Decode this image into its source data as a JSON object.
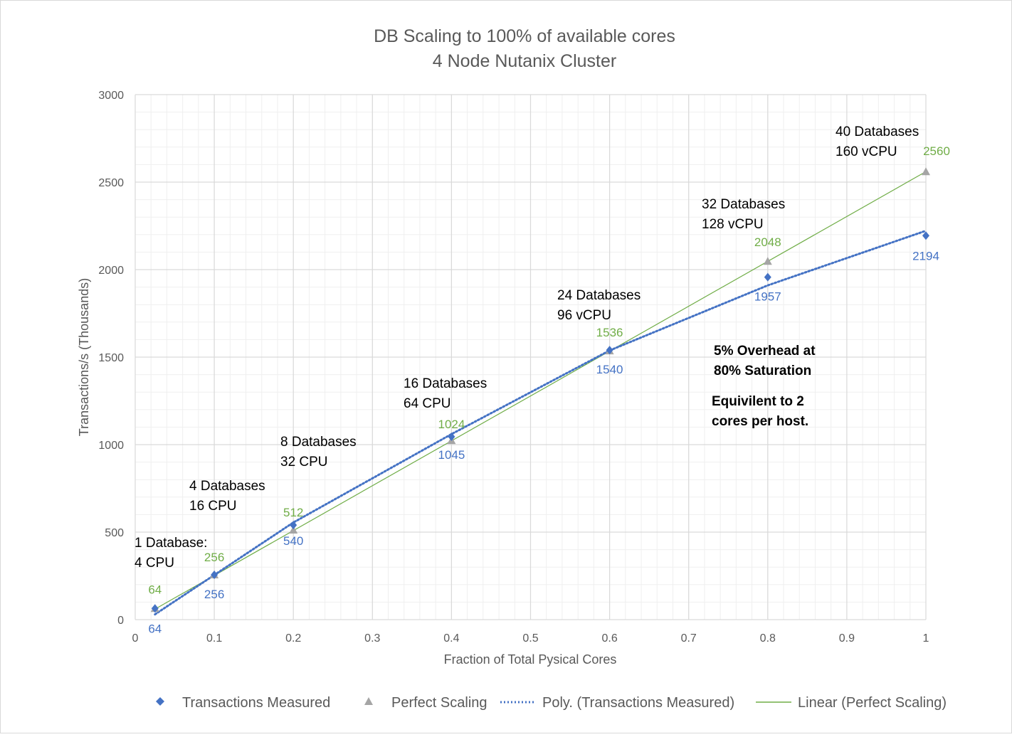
{
  "chart_data": {
    "type": "scatter",
    "title": "DB Scaling to 100% of available cores",
    "subtitle": "4 Node Nutanix Cluster",
    "xlabel": "Fraction of Total Pysical Cores",
    "ylabel": "Transactions/s (Thousands)",
    "xlim": [
      0,
      1
    ],
    "ylim": [
      0,
      3000
    ],
    "x_ticks": [
      "0",
      "0.1",
      "0.2",
      "0.3",
      "0.4",
      "0.5",
      "0.6",
      "0.7",
      "0.8",
      "0.9",
      "1"
    ],
    "y_ticks": [
      "0",
      "500",
      "1000",
      "1500",
      "2000",
      "2500",
      "3000"
    ],
    "grid": true,
    "legend_position": "bottom",
    "series": [
      {
        "name": "Transactions Measured",
        "marker": "diamond",
        "color": "#4472c4",
        "x": [
          0.025,
          0.1,
          0.2,
          0.4,
          0.6,
          0.8,
          1.0
        ],
        "y": [
          64,
          256,
          540,
          1045,
          1540,
          1957,
          2194
        ],
        "labels": [
          "64",
          "256",
          "540",
          "1045",
          "1540",
          "1957",
          "2194"
        ]
      },
      {
        "name": "Perfect Scaling",
        "marker": "triangle",
        "color": "#a5a5a5",
        "label_color": "#70ad47",
        "x": [
          0.025,
          0.1,
          0.2,
          0.4,
          0.6,
          0.8,
          1.0
        ],
        "y": [
          64,
          256,
          512,
          1024,
          1536,
          2048,
          2560
        ],
        "labels": [
          "64",
          "256",
          "512",
          "1024",
          "1536",
          "2048",
          "2560"
        ]
      }
    ],
    "trendlines": [
      {
        "name": "Poly. (Transactions Measured)",
        "type": "polynomial",
        "color": "#4472c4",
        "dash": "dotted",
        "x": [
          0.025,
          0.2,
          0.4,
          0.6,
          0.8,
          1.0
        ],
        "y": [
          30,
          555,
          1060,
          1538,
          1910,
          2222
        ]
      },
      {
        "name": "Linear (Perfect Scaling)",
        "type": "linear",
        "color": "#70ad47",
        "dash": "solid",
        "x": [
          0.025,
          1.0
        ],
        "y": [
          60,
          2560
        ]
      }
    ],
    "annotations": [
      {
        "lines": [
          "1 Database:",
          "4 CPU"
        ],
        "bold": false
      },
      {
        "lines": [
          "4 Databases",
          "16 CPU"
        ],
        "bold": false
      },
      {
        "lines": [
          "8 Databases",
          "32 CPU"
        ],
        "bold": false
      },
      {
        "lines": [
          "16 Databases",
          "64 CPU"
        ],
        "bold": false
      },
      {
        "lines": [
          "24 Databases",
          "96 vCPU"
        ],
        "bold": false
      },
      {
        "lines": [
          "32 Databases",
          "128 vCPU"
        ],
        "bold": false
      },
      {
        "lines": [
          "40 Databases",
          "160 vCPU"
        ],
        "bold": false
      },
      {
        "lines": [
          "5% Overhead at",
          "80% Saturation"
        ],
        "bold": true
      },
      {
        "lines": [
          "Equivilent to 2",
          "cores per host."
        ],
        "bold": true
      }
    ]
  }
}
